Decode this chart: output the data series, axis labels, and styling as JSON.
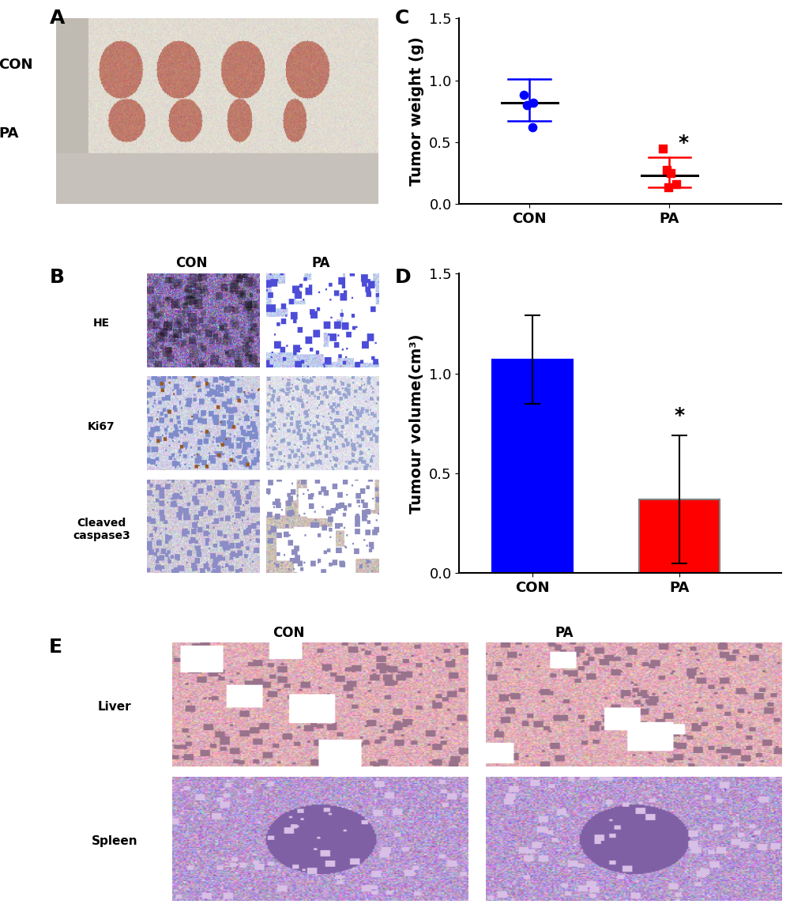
{
  "panel_C": {
    "label": "C",
    "groups": [
      "CON",
      "PA"
    ],
    "means": [
      0.82,
      0.23
    ],
    "sd_upper": [
      1.01,
      0.38
    ],
    "sd_lower": [
      0.67,
      0.14
    ],
    "con_points": [
      0.88,
      0.82,
      0.8,
      0.62
    ],
    "pa_points": [
      0.45,
      0.28,
      0.25,
      0.16,
      0.14
    ],
    "con_color": "#0000FF",
    "pa_color": "#FF0000",
    "ylabel": "Tumor weight (g)",
    "ylim": [
      0,
      1.5
    ],
    "yticks": [
      0.0,
      0.5,
      1.0,
      1.5
    ],
    "star_text": "*"
  },
  "panel_D": {
    "label": "D",
    "groups": [
      "CON",
      "PA"
    ],
    "means": [
      1.07,
      0.37
    ],
    "errors": [
      0.22,
      0.32
    ],
    "bar_colors": [
      "#0000FF",
      "#FF0000"
    ],
    "bar_edge_colors": [
      "#0000FF",
      "#808080"
    ],
    "ylabel": "Tumour volume(cm³)",
    "ylim": [
      0,
      1.5
    ],
    "yticks": [
      0.0,
      0.5,
      1.0,
      1.5
    ],
    "star_text": "*"
  },
  "background_color": "#FFFFFF",
  "label_fontsize": 18,
  "tick_fontsize": 13,
  "axis_label_fontsize": 14,
  "panel_A_label": "A",
  "panel_B_label": "B",
  "panel_E_label": "E",
  "panel_A_row_labels": [
    "CON",
    "PA"
  ],
  "panel_B_col_labels": [
    "CON",
    "PA"
  ],
  "panel_B_row_labels": [
    "HE",
    "Ki67",
    "Cleaved\ncaspase3"
  ],
  "panel_E_col_labels": [
    "CON",
    "PA"
  ],
  "panel_E_row_labels": [
    "Liver",
    "Spleen"
  ]
}
